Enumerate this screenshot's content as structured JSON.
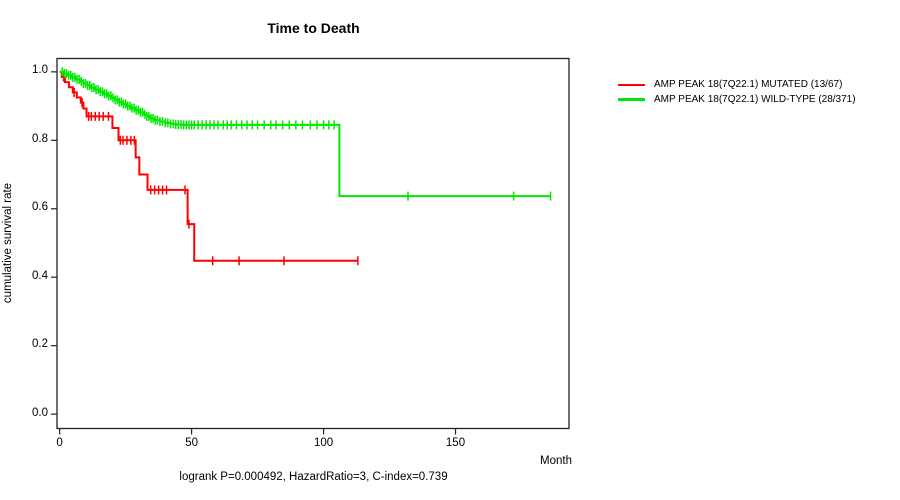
{
  "colors": {
    "mutated": "#FF0000",
    "wildtype": "#00E800",
    "box": "#222222",
    "text": "#000000"
  },
  "chart_data": {
    "type": "line",
    "subtype": "kaplan-meier-step",
    "title": "Time to Death",
    "xlabel": "Month",
    "ylabel": "cumulative survival rate",
    "annotation": "logrank P=0.000492, HazardRatio=3, C-index=0.739",
    "xlim": [
      -1,
      193
    ],
    "ylim": [
      -0.042,
      1.039
    ],
    "x_ticks": [
      0,
      50,
      100,
      150
    ],
    "y_ticks": [
      0.0,
      0.2,
      0.4,
      0.6,
      0.8,
      1.0
    ],
    "grid": false,
    "legend_position": "right-outside",
    "series": [
      {
        "name": "AMP PEAK 18(7Q22.1) MUTATED (13/67)",
        "color": "#FF0000",
        "steps": [
          [
            0,
            1.0
          ],
          [
            0.8,
            0.985
          ],
          [
            2,
            0.97
          ],
          [
            3.5,
            0.955
          ],
          [
            5,
            0.94
          ],
          [
            6.5,
            0.925
          ],
          [
            8,
            0.91
          ],
          [
            9,
            0.893
          ],
          [
            10.2,
            0.87
          ],
          [
            20,
            0.836
          ],
          [
            22.3,
            0.8
          ],
          [
            28.8,
            0.75
          ],
          [
            30.2,
            0.7
          ],
          [
            33.3,
            0.655
          ],
          [
            48.5,
            0.555
          ],
          [
            51,
            0.448
          ]
        ],
        "censors": [
          1.5,
          5.5,
          8.5,
          11,
          12,
          13.5,
          15,
          16.5,
          18.5,
          23,
          24,
          25.5,
          27,
          28.3,
          34.5,
          36,
          37.5,
          39,
          40.5,
          47.5,
          49,
          58,
          68,
          85,
          113
        ],
        "end": 113
      },
      {
        "name": "AMP PEAK 18(7Q22.1) WILD-TYPE (28/371)",
        "color": "#00E800",
        "steps": [
          [
            0,
            1.0
          ],
          [
            1.5,
            0.995
          ],
          [
            3,
            0.99
          ],
          [
            4.5,
            0.984
          ],
          [
            6,
            0.978
          ],
          [
            7.5,
            0.972
          ],
          [
            9,
            0.966
          ],
          [
            10.5,
            0.96
          ],
          [
            12,
            0.954
          ],
          [
            13.5,
            0.948
          ],
          [
            15,
            0.942
          ],
          [
            16.5,
            0.936
          ],
          [
            18,
            0.93
          ],
          [
            19.5,
            0.924
          ],
          [
            21,
            0.918
          ],
          [
            22.5,
            0.912
          ],
          [
            24,
            0.906
          ],
          [
            25.5,
            0.9
          ],
          [
            27,
            0.894
          ],
          [
            28.5,
            0.888
          ],
          [
            30,
            0.882
          ],
          [
            31.5,
            0.876
          ],
          [
            33,
            0.87
          ],
          [
            34.5,
            0.864
          ],
          [
            36,
            0.859
          ],
          [
            38,
            0.855
          ],
          [
            40,
            0.851
          ],
          [
            42,
            0.848
          ],
          [
            44,
            0.846
          ],
          [
            46.5,
            0.845
          ],
          [
            106,
            0.637
          ]
        ],
        "censors": [
          1,
          1.8,
          2.6,
          3.4,
          4.2,
          5,
          5.8,
          6.6,
          7.4,
          8.2,
          9,
          9.8,
          10.6,
          11.4,
          12.2,
          13,
          13.8,
          14.6,
          15.4,
          16.2,
          17,
          17.8,
          18.6,
          19.4,
          20.2,
          21,
          21.8,
          22.6,
          23.4,
          24.2,
          25,
          25.8,
          26.6,
          27.4,
          28.2,
          29,
          29.8,
          30.6,
          31.4,
          32.2,
          33,
          33.8,
          34.6,
          35.4,
          36.2,
          37,
          38,
          39,
          40,
          41,
          42,
          43,
          44,
          45,
          46,
          47,
          48,
          49,
          50,
          51,
          52.5,
          54,
          55.5,
          57,
          58.5,
          60,
          62,
          63.5,
          65,
          67,
          69,
          71,
          73,
          75,
          77.5,
          80,
          82,
          84.5,
          87,
          89.5,
          92,
          95,
          97.5,
          100,
          102,
          104,
          132,
          172,
          186
        ],
        "end": 186
      }
    ]
  },
  "legend": {
    "items": [
      {
        "label": "AMP PEAK 18(7Q22.1) MUTATED (13/67)",
        "color": "#FF0000"
      },
      {
        "label": "AMP PEAK 18(7Q22.1) WILD-TYPE (28/371)",
        "color": "#00E800"
      }
    ]
  }
}
